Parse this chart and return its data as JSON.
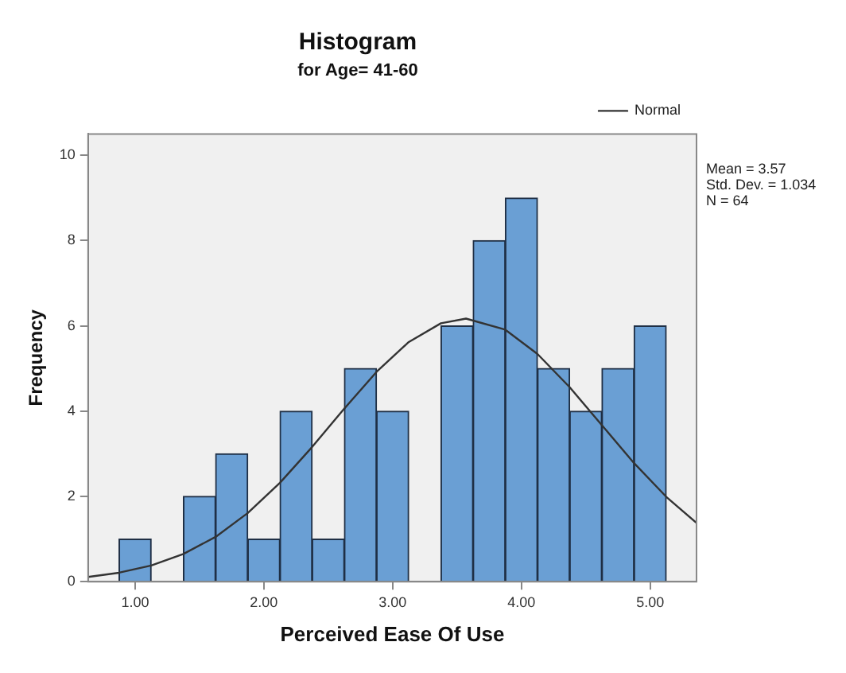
{
  "chart_data": {
    "type": "histogram",
    "title": "Histogram",
    "subtitle": "for Age= 41-60",
    "xlabel": "Perceived Ease Of Use",
    "ylabel": "Frequency",
    "bins": [
      0.875,
      1.125,
      1.375,
      1.625,
      1.875,
      2.125,
      2.375,
      2.625,
      2.875,
      3.125,
      3.375,
      3.625,
      3.875,
      4.125,
      4.375,
      4.625,
      4.875,
      5.125
    ],
    "values": [
      1,
      0,
      2,
      3,
      1,
      4,
      1,
      5,
      4,
      0,
      6,
      8,
      9,
      5,
      4,
      5,
      6
    ],
    "color": "#6a9fd4",
    "series": [
      {
        "name": "Normal",
        "type": "line",
        "color": "#333333",
        "x": [
          0.635,
          0.875,
          1.125,
          1.375,
          1.625,
          1.875,
          2.125,
          2.375,
          2.625,
          2.875,
          3.125,
          3.375,
          3.57,
          3.875,
          4.125,
          4.375,
          4.625,
          4.875,
          5.125,
          5.36
        ],
        "values": [
          0.11,
          0.21,
          0.38,
          0.65,
          1.05,
          1.61,
          2.32,
          3.16,
          4.06,
          4.92,
          5.62,
          6.06,
          6.17,
          5.91,
          5.34,
          4.56,
          3.67,
          2.78,
          1.99,
          1.38
        ]
      }
    ],
    "xlim": [
      0.635,
      5.36
    ],
    "xticks": [
      {
        "value": 1,
        "label": "1.00"
      },
      {
        "value": 2,
        "label": "2.00"
      },
      {
        "value": 3,
        "label": "3.00"
      },
      {
        "value": 4,
        "label": "4.00"
      },
      {
        "value": 5,
        "label": "5.00"
      }
    ],
    "ylim": [
      0,
      10.5
    ],
    "yticks": [
      0,
      2,
      4,
      6,
      8,
      10
    ],
    "grid": false,
    "legend": "top right",
    "marker": "none",
    "annotations": [
      "Mean = 3.57",
      "Std. Dev. = 1.034",
      "N = 64"
    ]
  }
}
